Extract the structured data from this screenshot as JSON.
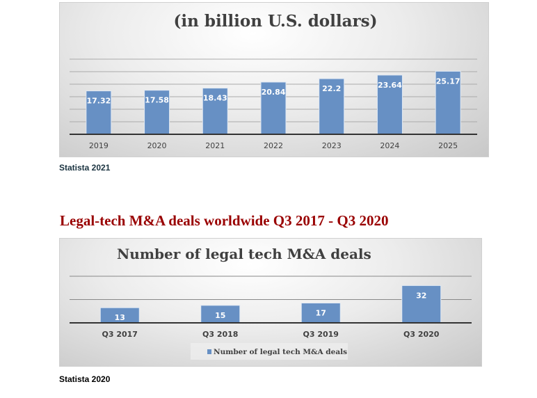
{
  "chart_data": [
    {
      "type": "bar",
      "title": "(in billion U.S. dollars)",
      "categories": [
        "2019",
        "2020",
        "2021",
        "2022",
        "2023",
        "2024",
        "2025"
      ],
      "values": [
        17.32,
        17.58,
        18.43,
        20.84,
        22.2,
        23.64,
        25.17
      ],
      "ylim": [
        0,
        30
      ],
      "grid": true,
      "bar_color": "#6790c4"
    },
    {
      "type": "bar",
      "title": "Number of legal tech M&A deals",
      "categories": [
        "Q3 2017",
        "Q3 2018",
        "Q3 2019",
        "Q3 2020"
      ],
      "values": [
        13,
        15,
        17,
        32
      ],
      "series": [
        {
          "name": "Number of legal tech M&A deals",
          "values": [
            13,
            15,
            17,
            32
          ]
        }
      ],
      "ylim": [
        0,
        40
      ],
      "grid": true,
      "legend": "bottom",
      "bar_color": "#6790c4"
    }
  ],
  "source1": "Statista 2021",
  "heading2": "Legal-tech M&A deals worldwide Q3 2017 - Q3 2020",
  "source2": "Statista 2020",
  "colors": {
    "heading": "#990000",
    "source1": "#1a3340",
    "bar": "#6790c4"
  }
}
